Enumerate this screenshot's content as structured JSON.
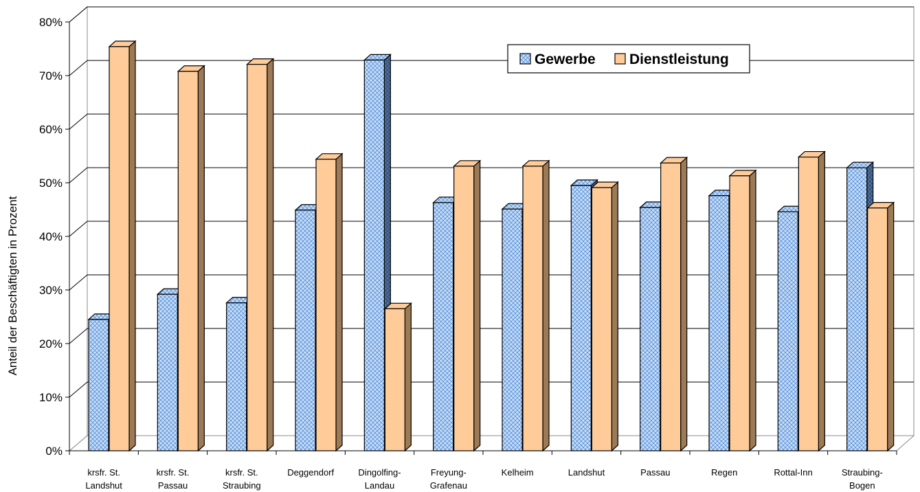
{
  "chart_data": {
    "type": "bar",
    "ylabel": "Anteil der Beschäftigten in Prozent",
    "ylim": [
      0,
      80
    ],
    "y_tick_step": 10,
    "y_tick_format": "percent",
    "grid": true,
    "legend_position": "top-right",
    "categories": [
      [
        "krsfr. St.",
        "Landshut"
      ],
      [
        "krsfr. St.",
        "Passau"
      ],
      [
        "krsfr. St.",
        "Straubing"
      ],
      [
        "Deggendorf"
      ],
      [
        "Dingolfing-",
        "Landau"
      ],
      [
        "Freyung-",
        "Grafenau"
      ],
      [
        "Kelheim"
      ],
      [
        "Landshut"
      ],
      [
        "Passau"
      ],
      [
        "Regen"
      ],
      [
        "Rottal-Inn"
      ],
      [
        "Straubing-",
        "Bogen"
      ]
    ],
    "series": [
      {
        "name": "Gewerbe",
        "pattern": "crosshatch",
        "color": "#bcd7f5",
        "line_color": "#5b8fd6",
        "values": [
          24.5,
          29.2,
          27.6,
          44.9,
          72.9,
          46.3,
          45.1,
          49.5,
          45.4,
          47.6,
          44.6,
          52.8
        ]
      },
      {
        "name": "Dienstleistung",
        "color": "#ffcc99",
        "side_color": "#9c7a56",
        "values": [
          75.4,
          70.8,
          72.1,
          54.4,
          26.5,
          53.1,
          53.1,
          49.1,
          53.7,
          51.3,
          54.8,
          45.3
        ]
      }
    ]
  }
}
